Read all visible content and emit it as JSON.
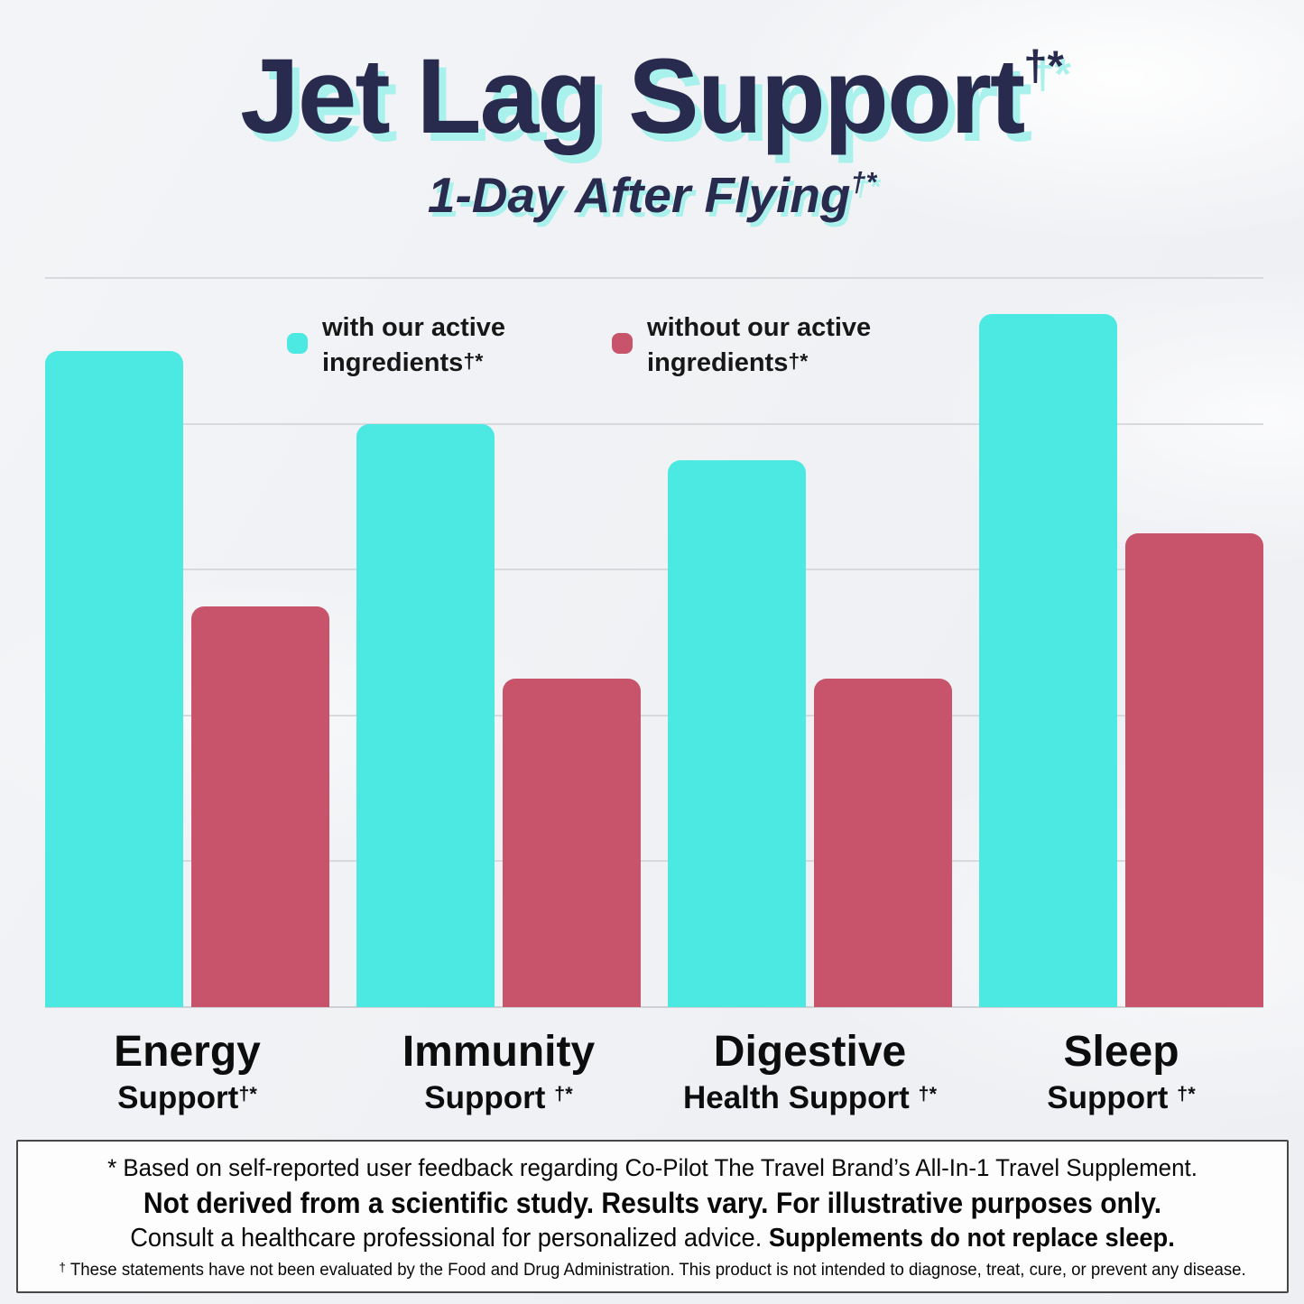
{
  "header": {
    "title": "Jet Lag Support",
    "title_sup": "†*",
    "subtitle": "1-Day After Flying",
    "subtitle_sup": "†*"
  },
  "legend": {
    "items": [
      {
        "line1": "with our active",
        "line2": "ingredients",
        "sup": "†*",
        "color": "#4ce8e2"
      },
      {
        "line1": "without our active",
        "line2": "ingredients",
        "sup": "†*",
        "color": "#c8546b"
      }
    ]
  },
  "chart_data": {
    "type": "bar",
    "title": "Jet Lag Support†*",
    "subtitle": "1-Day After Flying†*",
    "categories": [
      "Energy Support†*",
      "Immunity Support†*",
      "Digestive Health Support†*",
      "Sleep Support†*"
    ],
    "series": [
      {
        "name": "with our active ingredients†*",
        "key": "with-ingredients",
        "color": "#4ce8e2",
        "values": [
          90,
          80,
          75,
          95
        ]
      },
      {
        "name": "without our active ingredients†*",
        "key": "without-ingredients",
        "color": "#c8546b",
        "values": [
          55,
          45,
          45,
          65
        ]
      }
    ],
    "xlabel": "",
    "ylabel": "",
    "ylim": [
      0,
      100
    ],
    "gridline_step": 20,
    "grid": "horizontal",
    "axis_tick_labels_visible": false,
    "legend_position": "top"
  },
  "category_labels": [
    {
      "line1": "Energy",
      "line2": "Support",
      "sup": "†*"
    },
    {
      "line1": "Immunity",
      "line2": "Support ",
      "sup": "†*"
    },
    {
      "line1": "Digestive",
      "line2": "Health Support ",
      "sup": "†*"
    },
    {
      "line1": "Sleep",
      "line2": "Support ",
      "sup": "†*"
    }
  ],
  "footnotes": {
    "line1": "* Based on self-reported user feedback regarding Co-Pilot The Travel Brand’s All-In-1 Travel Supplement.",
    "line2": "Not derived from a scientific study. Results vary. For illustrative purposes only.",
    "line3_regular": "Consult a healthcare professional for personalized advice. ",
    "line3_bold": "Supplements do not replace sleep.",
    "line4_sup": "†",
    "line4": " These statements have not been evaluated by the Food and Drug Administration. This product is not intended to diagnose, treat, cure, or prevent any disease."
  },
  "colors": {
    "title_navy": "#292b4e",
    "shadow_cyan": "#a9f1ec",
    "bar_cyan": "#4ce8e2",
    "bar_red": "#c8546b",
    "gridline": "#d7d9dd",
    "background": "#eff1f4",
    "box_border": "#474747",
    "box_background": "#fdfdfe"
  }
}
